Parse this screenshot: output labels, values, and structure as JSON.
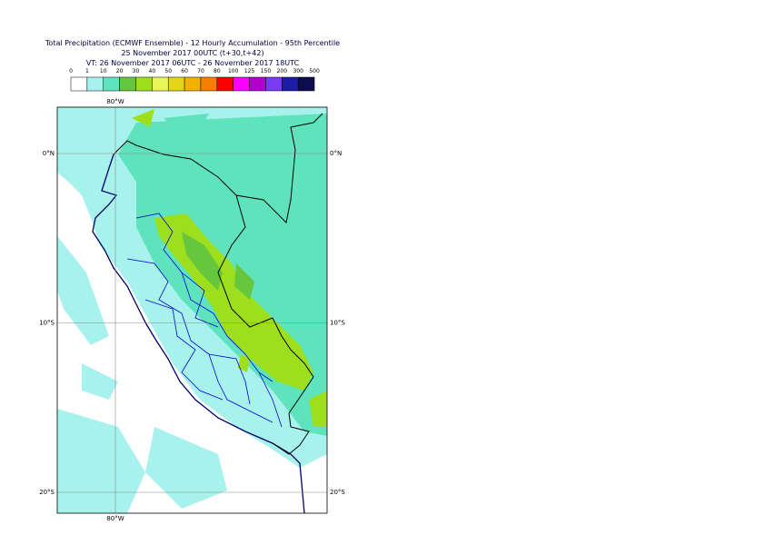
{
  "header": {
    "title": "Total Precipitation (ECMWF Ensemble) - 12 Hourly Accumulation - 95th Percentile",
    "base_time": "25 November 2017 00UTC (t+30,t+42)",
    "valid_time": "VT: 26 November 2017 06UTC - 26 November 2017 18UTC"
  },
  "legend": {
    "thresholds": [
      0,
      1,
      10,
      20,
      30,
      40,
      50,
      60,
      70,
      80,
      100,
      125,
      150,
      200,
      300,
      500
    ],
    "colors": [
      "#ffffff",
      "#a8f2ee",
      "#5ee3bc",
      "#66c73c",
      "#9ddf1c",
      "#eaf55c",
      "#e3d616",
      "#f2b000",
      "#f77f00",
      "#ff0000",
      "#ff00ff",
      "#b200cc",
      "#7a3cf0",
      "#1c1ca6",
      "#0c0c4e"
    ]
  },
  "map": {
    "longitude_labels": [
      "80°W"
    ],
    "latitude_labels": [
      "0°N",
      "10°S",
      "20°S"
    ]
  }
}
